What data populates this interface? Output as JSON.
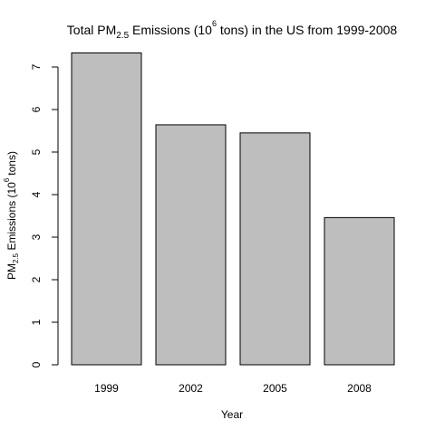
{
  "chart_data": {
    "type": "bar",
    "title": {
      "prefix": "Total PM",
      "subscript": "2.5",
      "middle": " Emissions (10",
      "superscript": "6",
      "suffix": " tons) in the US from 1999-2008"
    },
    "xlabel": "Year",
    "ylabel": {
      "prefix": "PM",
      "subscript": "2.5",
      "middle": " Emissions (10",
      "superscript": "6",
      "suffix": "tons)"
    },
    "categories": [
      "1999",
      "2002",
      "2005",
      "2008"
    ],
    "values": [
      7.33,
      5.64,
      5.45,
      3.46
    ],
    "ylim": [
      0,
      7.5
    ],
    "yticks": [
      0,
      1,
      2,
      3,
      4,
      5,
      6,
      7
    ],
    "grid": false,
    "bar_color": "#bebebe",
    "bar_stroke": "#000000"
  }
}
